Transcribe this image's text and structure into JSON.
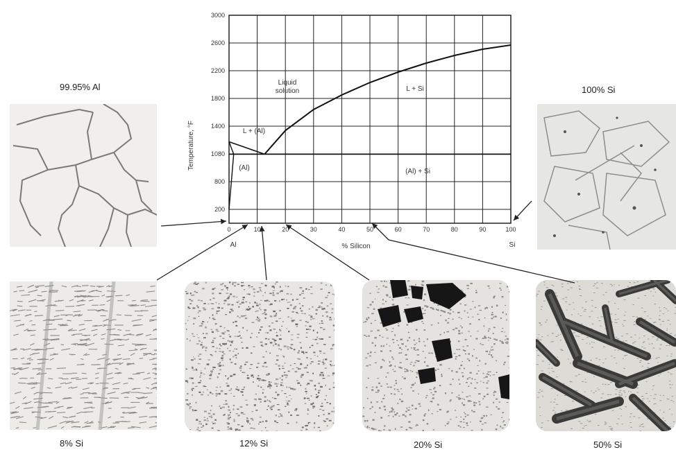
{
  "phase_diagram": {
    "y_axis_label": "Temperature, °F",
    "x_axis_label": "% Silicon",
    "x_left_label": "Al",
    "x_right_label": "Si",
    "y_ticks": [
      "3000",
      "2600",
      "2200",
      "1800",
      "1400",
      "1080",
      "800",
      "200"
    ],
    "x_ticks": [
      "0",
      "10",
      "20",
      "30",
      "40",
      "50",
      "60",
      "70",
      "80",
      "90",
      "100"
    ],
    "regions": {
      "liquid": "Liquid solution",
      "l_plus_si": "L + Si",
      "l_plus_al": "L + (Al)",
      "al": "(Al)",
      "al_plus_si": "(Al) + Si"
    },
    "curves": {
      "liquidus_si_side": [
        [
          12.6,
          1077
        ],
        [
          20,
          1350
        ],
        [
          30,
          1640
        ],
        [
          40,
          1850
        ],
        [
          50,
          2030
        ],
        [
          60,
          2180
        ],
        [
          70,
          2310
        ],
        [
          80,
          2420
        ],
        [
          90,
          2510
        ],
        [
          100,
          2570
        ]
      ],
      "liquidus_al_side": [
        [
          0,
          1220
        ],
        [
          12.6,
          1077
        ]
      ],
      "solidus": [
        [
          0,
          1220
        ],
        [
          1.65,
          1077
        ]
      ],
      "solvus": [
        [
          1.65,
          1077
        ],
        [
          0,
          200
        ]
      ],
      "eutectic": [
        [
          0,
          1077
        ],
        [
          100,
          1077
        ]
      ]
    }
  },
  "micrographs": [
    {
      "label": "99.95% Al"
    },
    {
      "label": "100% Si"
    },
    {
      "label": "8% Si"
    },
    {
      "label": "12% Si"
    },
    {
      "label": "20% Si"
    },
    {
      "label": "50% Si"
    }
  ]
}
